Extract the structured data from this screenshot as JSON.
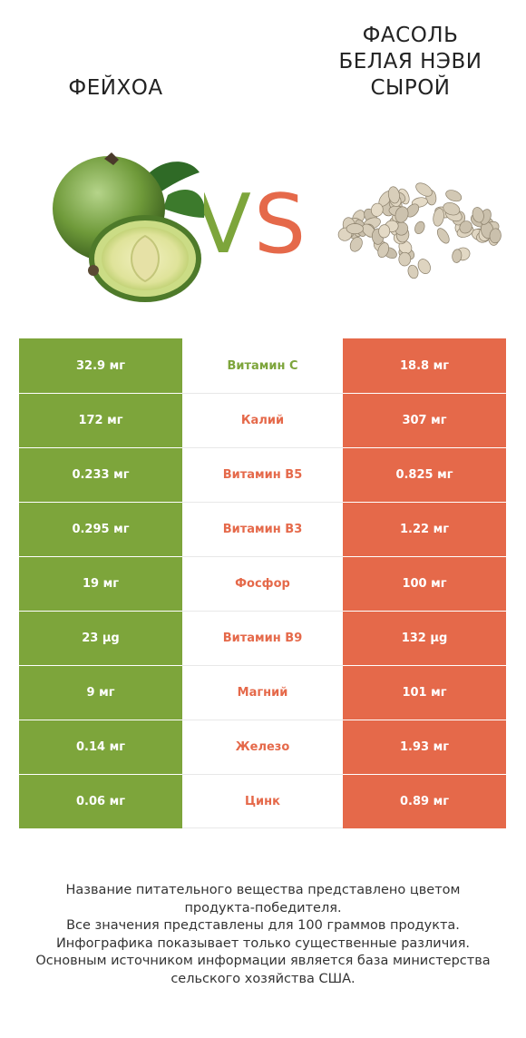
{
  "header": {
    "left_title": "ФЕЙХОА",
    "right_title_lines": [
      "ФАСОЛЬ",
      "БЕЛАЯ НЭВИ",
      "СЫРОЙ"
    ],
    "vs_text": "VS"
  },
  "colors": {
    "left": "#7da53b",
    "right": "#e5694a"
  },
  "icons": {
    "left_image": "feijoa-fruit-image",
    "right_image": "navy-beans-image"
  },
  "chart_data": {
    "type": "table",
    "columns": [
      "Фейхоа",
      "Нутриент",
      "Фасоль белая нэви сырой"
    ],
    "rows": [
      {
        "left": "32.9 мг",
        "nutrient": "Витамин C",
        "right": "18.8 мг",
        "winner": "left"
      },
      {
        "left": "172 мг",
        "nutrient": "Калий",
        "right": "307 мг",
        "winner": "right"
      },
      {
        "left": "0.233 мг",
        "nutrient": "Витамин B5",
        "right": "0.825 мг",
        "winner": "right"
      },
      {
        "left": "0.295 мг",
        "nutrient": "Витамин B3",
        "right": "1.22 мг",
        "winner": "right"
      },
      {
        "left": "19 мг",
        "nutrient": "Фосфор",
        "right": "100 мг",
        "winner": "right"
      },
      {
        "left": "23 µg",
        "nutrient": "Витамин B9",
        "right": "132 µg",
        "winner": "right"
      },
      {
        "left": "9 мг",
        "nutrient": "Магний",
        "right": "101 мг",
        "winner": "right"
      },
      {
        "left": "0.14 мг",
        "nutrient": "Железо",
        "right": "1.93 мг",
        "winner": "right"
      },
      {
        "left": "0.06 мг",
        "nutrient": "Цинк",
        "right": "0.89 мг",
        "winner": "right"
      }
    ]
  },
  "footer": {
    "lines": [
      "Название питательного вещества представлено цветом",
      "продукта-победителя.",
      "Все значения представлены для 100 граммов продукта.",
      "Инфографика показывает только существенные различия.",
      "Основным источником информации является база министерства",
      "сельского хозяйства США."
    ]
  }
}
